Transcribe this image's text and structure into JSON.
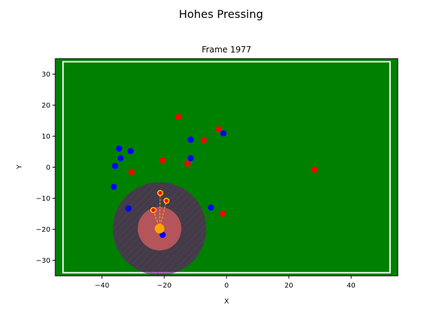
{
  "figure": {
    "suptitle": "Hohes Pressing"
  },
  "chart_data": {
    "type": "scatter",
    "title": "Frame 1977",
    "xlabel": "X",
    "ylabel": "Y",
    "xlim": [
      -55,
      55
    ],
    "ylim": [
      -35,
      35
    ],
    "xticks": [
      -40,
      -20,
      0,
      20,
      40
    ],
    "yticks": [
      -30,
      -20,
      -10,
      0,
      10,
      20,
      30
    ],
    "grid": false,
    "legend": "none",
    "background_color": "#008000",
    "pitch_boundary": {
      "x": [
        -52.5,
        52.5
      ],
      "y": [
        -34,
        34
      ],
      "color": "#ffffff"
    },
    "series": [
      {
        "color": "#ff0000",
        "points": [
          [
            -15.5,
            16.2
          ],
          [
            -2.5,
            12.3
          ],
          [
            -7.3,
            8.8
          ],
          [
            -20.5,
            2.2
          ],
          [
            -12.5,
            1.2
          ],
          [
            -30.5,
            -1.5
          ],
          [
            28.2,
            -0.8
          ],
          [
            -1.2,
            -15.0
          ]
        ]
      },
      {
        "color": "#0000ff",
        "points": [
          [
            -34.5,
            6.0
          ],
          [
            -30.8,
            5.2
          ],
          [
            -34.0,
            2.9
          ],
          [
            -35.8,
            0.4
          ],
          [
            -11.5,
            8.9
          ],
          [
            -1.0,
            10.9
          ],
          [
            -11.5,
            2.9
          ],
          [
            -36.2,
            -6.3
          ],
          [
            -31.5,
            -13.3
          ],
          [
            -5.0,
            -13.0
          ],
          [
            -20.5,
            -21.8
          ]
        ]
      }
    ],
    "ball": {
      "x": -21.5,
      "y": -19.8,
      "color": "#ffa500"
    },
    "pressure_zones": [
      {
        "x": -21.5,
        "y": -19.8,
        "radius": 15,
        "color": "#800080"
      },
      {
        "x": -21.5,
        "y": -19.8,
        "radius": 7,
        "color": "#ff6666"
      }
    ],
    "pressers": [
      {
        "x": -21.3,
        "y": -8.3
      },
      {
        "x": -19.3,
        "y": -10.8
      },
      {
        "x": -23.5,
        "y": -13.8
      }
    ]
  }
}
